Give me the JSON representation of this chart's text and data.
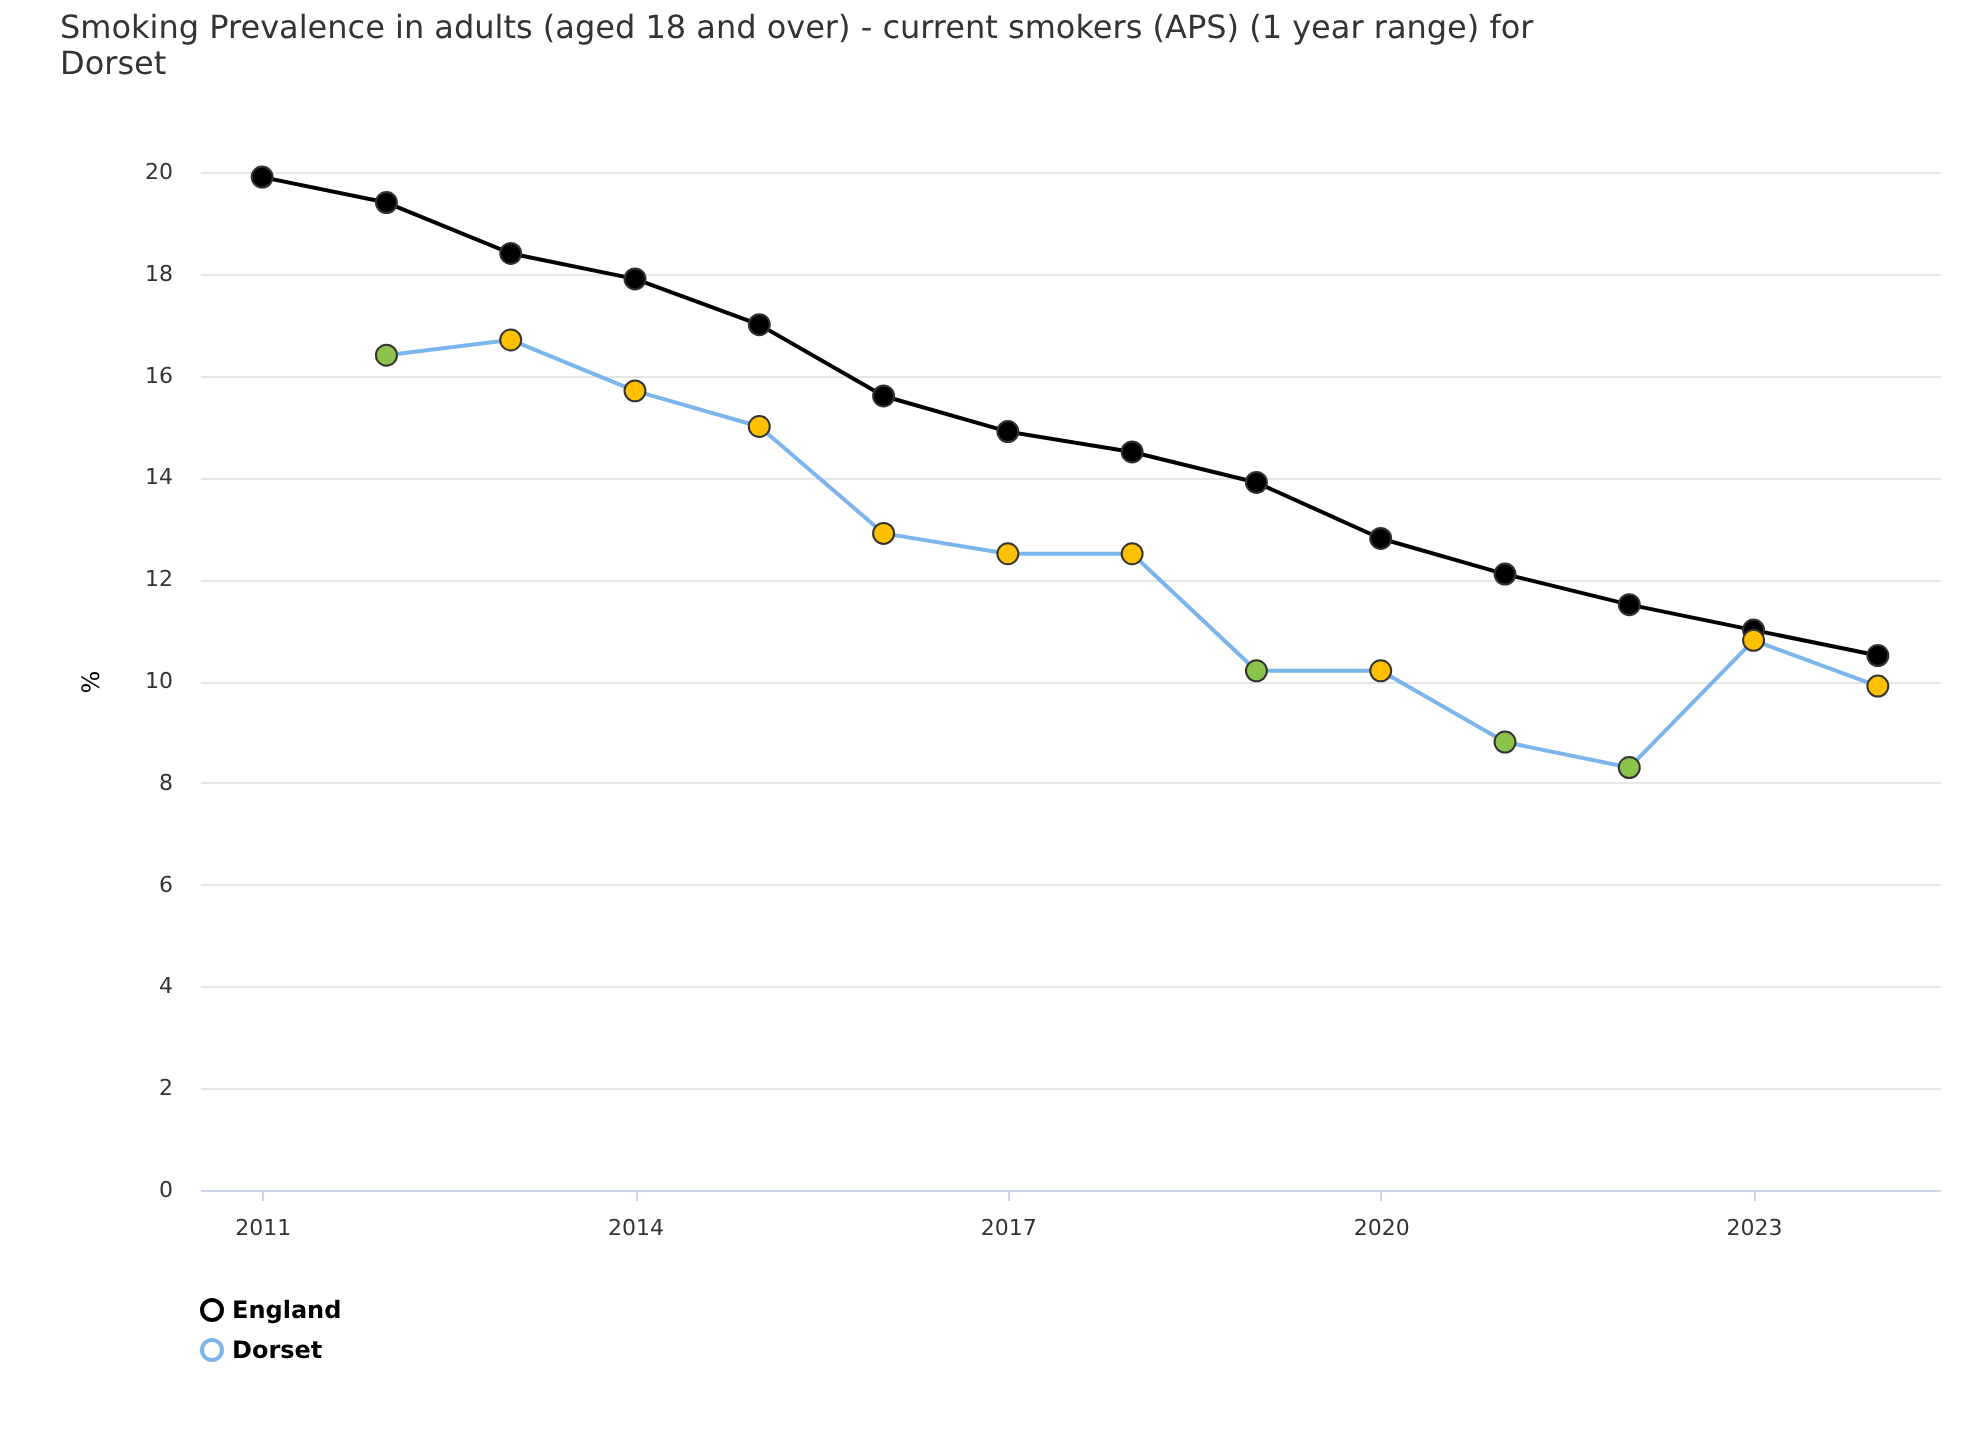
{
  "chart_data": {
    "type": "line",
    "title": "Smoking Prevalence in adults (aged 18 and over) - current smokers (APS) (1 year range) for Dorset",
    "ylabel": "%",
    "x": [
      2011,
      2012,
      2013,
      2014,
      2015,
      2016,
      2017,
      2018,
      2019,
      2020,
      2021,
      2022,
      2023,
      2024
    ],
    "series": [
      {
        "name": "England",
        "color": "#000000",
        "values": [
          19.9,
          19.4,
          18.4,
          17.9,
          17.0,
          15.6,
          14.9,
          14.5,
          13.9,
          12.8,
          12.1,
          11.5,
          11.0,
          10.5
        ]
      },
      {
        "name": "Dorset",
        "color": "#7cb5ec",
        "values": [
          null,
          16.4,
          16.7,
          15.7,
          15.0,
          12.9,
          12.5,
          12.5,
          10.2,
          10.2,
          8.8,
          8.3,
          10.8,
          9.9
        ],
        "colors": [
          null,
          "#8bc34a",
          "#ffc000",
          "#ffc000",
          "#ffc000",
          "#ffc000",
          "#ffc000",
          "#ffc000",
          "#8bc34a",
          "#ffc000",
          "#8bc34a",
          "#8bc34a",
          "#ffc000",
          "#ffc000"
        ]
      }
    ],
    "xlim": [
      2010.5,
      2024.5
    ],
    "xticks": [
      2011,
      2014,
      2017,
      2020,
      2023
    ],
    "ylim": [
      0,
      20
    ],
    "yticks": [
      0,
      2,
      4,
      6,
      8,
      10,
      12,
      14,
      16,
      18,
      20
    ],
    "grid": "y",
    "legend": "bottom",
    "marker": "circle",
    "line_style": "solid"
  }
}
